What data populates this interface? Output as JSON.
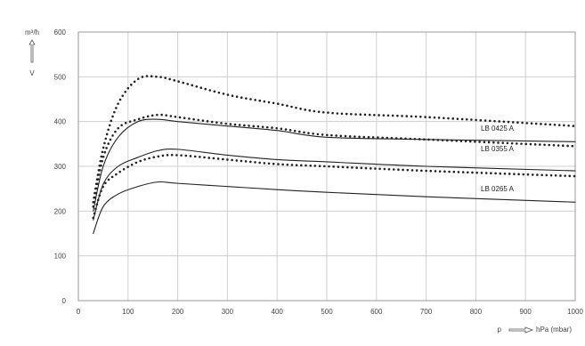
{
  "chart_data": {
    "type": "line",
    "title": "",
    "xlabel": "p",
    "xlabel_unit": "hPa (mbar)",
    "ylabel": "m³/h",
    "ylabel_symbol": "V",
    "xlim": [
      0,
      1000
    ],
    "ylim": [
      0,
      600
    ],
    "x_ticks": [
      0,
      100,
      200,
      300,
      400,
      500,
      600,
      700,
      800,
      900,
      1000
    ],
    "y_ticks": [
      0,
      100,
      200,
      300,
      400,
      500,
      600
    ],
    "grid": true,
    "legend": "none",
    "colors": {
      "solid": "#222222",
      "dotted": "#222222",
      "grid": "#cfcfcf",
      "axis": "#9a9a9a"
    },
    "series": [
      {
        "name": "",
        "style": "dotted",
        "x": [
          30,
          50,
          80,
          120,
          160,
          200,
          300,
          400,
          500,
          700,
          1000
        ],
        "y": [
          220,
          340,
          440,
          495,
          500,
          490,
          460,
          440,
          420,
          410,
          390
        ]
      },
      {
        "name": "LB 0425 A",
        "style": "solid",
        "x": [
          30,
          50,
          80,
          120,
          160,
          200,
          300,
          400,
          500,
          700,
          1000
        ],
        "y": [
          200,
          300,
          365,
          400,
          405,
          400,
          390,
          380,
          365,
          360,
          355
        ]
      },
      {
        "name": "",
        "style": "dotted",
        "x": [
          30,
          50,
          80,
          120,
          160,
          200,
          300,
          400,
          500,
          700,
          1000
        ],
        "y": [
          210,
          320,
          385,
          405,
          415,
          410,
          395,
          385,
          370,
          360,
          345
        ]
      },
      {
        "name": "LB 0355 A",
        "style": "solid",
        "x": [
          30,
          50,
          80,
          120,
          160,
          200,
          300,
          400,
          500,
          700,
          1000
        ],
        "y": [
          180,
          260,
          300,
          320,
          335,
          338,
          325,
          315,
          310,
          300,
          290
        ]
      },
      {
        "name": "",
        "style": "dotted",
        "x": [
          30,
          50,
          80,
          120,
          160,
          200,
          300,
          400,
          500,
          700,
          1000
        ],
        "y": [
          185,
          255,
          285,
          310,
          322,
          325,
          315,
          305,
          300,
          290,
          278
        ]
      },
      {
        "name": "LB 0265 A",
        "style": "solid",
        "x": [
          30,
          50,
          80,
          120,
          160,
          200,
          300,
          400,
          500,
          700,
          1000
        ],
        "y": [
          150,
          210,
          238,
          255,
          265,
          262,
          255,
          248,
          242,
          232,
          220
        ]
      }
    ]
  }
}
